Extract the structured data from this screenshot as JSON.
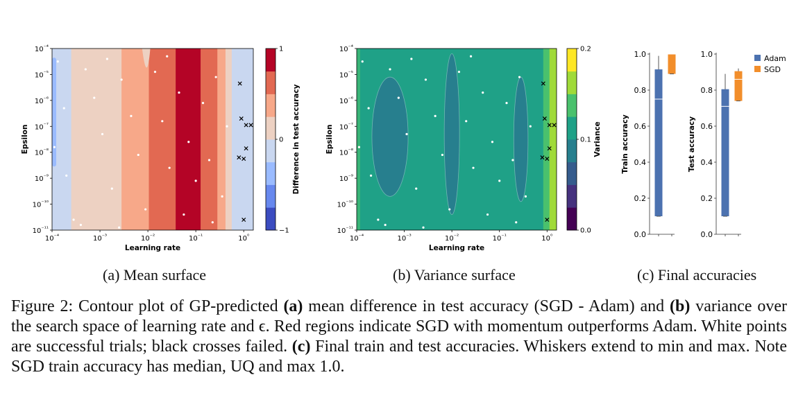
{
  "colors": {
    "coolwarm": [
      "#3b4cc0",
      "#6788ee",
      "#9abbff",
      "#c9d7f0",
      "#edd1c2",
      "#f7a889",
      "#e26952",
      "#b40426"
    ],
    "viridis": [
      "#440154",
      "#46327e",
      "#365c8d",
      "#277f8e",
      "#1fa187",
      "#4ac16d",
      "#a0da39",
      "#fde725"
    ],
    "adam": "#4c72b0",
    "sgd": "#f28e2b"
  },
  "chart_data": [
    {
      "type": "heatmap",
      "name": "mean-surface",
      "xlabel": "Learning rate",
      "ylabel": "Epsilon",
      "x_ticks": [
        {
          "value": -4,
          "label": "10⁻⁴"
        },
        {
          "value": -3,
          "label": "10⁻³"
        },
        {
          "value": -2,
          "label": "10⁻²"
        },
        {
          "value": -1,
          "label": "10⁻¹"
        },
        {
          "value": 0,
          "label": "10⁰"
        }
      ],
      "y_ticks": [
        {
          "value": -4,
          "label": "10⁻⁴"
        },
        {
          "value": -5,
          "label": "10⁻⁵"
        },
        {
          "value": -6,
          "label": "10⁻⁶"
        },
        {
          "value": -7,
          "label": "10⁻⁷"
        },
        {
          "value": -8,
          "label": "10⁻⁸"
        },
        {
          "value": -9,
          "label": "10⁻⁹"
        },
        {
          "value": -10,
          "label": "10⁻¹⁰"
        },
        {
          "value": -11,
          "label": "10⁻¹¹"
        }
      ],
      "xlim_log10": [
        -4,
        0.2
      ],
      "ylim_log10": [
        -11,
        -4
      ],
      "colorbar": {
        "label": "Difference in test accuracy",
        "min": -1,
        "max": 1,
        "ticks": [
          {
            "value": 1,
            "label": "1"
          },
          {
            "value": 0,
            "label": "0"
          },
          {
            "value": -1,
            "label": "−1"
          }
        ]
      },
      "bands_log10_lr": [
        {
          "from": -4,
          "to": -3.6,
          "level": 3
        },
        {
          "from": -3.6,
          "to": -2.55,
          "level": 4
        },
        {
          "from": -2.55,
          "to": -1.98,
          "level": 5
        },
        {
          "from": -1.98,
          "to": -1.42,
          "level": 6
        },
        {
          "from": -1.42,
          "to": -0.9,
          "level": 7
        },
        {
          "from": -0.9,
          "to": -0.55,
          "level": 6
        },
        {
          "from": -0.55,
          "to": -0.38,
          "level": 5
        },
        {
          "from": -0.38,
          "to": -0.25,
          "level": 4
        },
        {
          "from": -0.25,
          "to": 0.2,
          "level": 3
        }
      ],
      "success_points": [
        [
          -3.88,
          -4.5
        ],
        [
          -3.75,
          -6.3
        ],
        [
          -3.7,
          -8.9
        ],
        [
          -3.55,
          -10.6
        ],
        [
          -3.3,
          -4.8
        ],
        [
          -3.12,
          -5.9
        ],
        [
          -2.95,
          -7.3
        ],
        [
          -2.75,
          -9.4
        ],
        [
          -2.55,
          -5.2
        ],
        [
          -2.35,
          -6.6
        ],
        [
          -2.2,
          -8.1
        ],
        [
          -2.05,
          -10.2
        ],
        [
          -1.85,
          -4.9
        ],
        [
          -1.7,
          -6.8
        ],
        [
          -1.55,
          -8.6
        ],
        [
          -1.35,
          -5.7
        ],
        [
          -1.15,
          -7.6
        ],
        [
          -1.0,
          -9.1
        ],
        [
          -0.85,
          -6.1
        ],
        [
          -0.72,
          -8.3
        ],
        [
          -0.58,
          -5.1
        ],
        [
          -0.45,
          -9.7
        ],
        [
          -0.35,
          -7.0
        ],
        [
          -3.4,
          -10.8
        ],
        [
          -2.6,
          -10.9
        ],
        [
          -1.25,
          -10.4
        ],
        [
          -0.65,
          -10.7
        ],
        [
          -3.95,
          -7.8
        ],
        [
          -2.85,
          -4.4
        ],
        [
          -1.6,
          -4.3
        ]
      ],
      "failed_points": [
        [
          -0.08,
          -5.35
        ],
        [
          -0.05,
          -6.7
        ],
        [
          0.05,
          -6.95
        ],
        [
          0.15,
          -6.95
        ],
        [
          -0.1,
          -8.2
        ],
        [
          0.0,
          -8.25
        ],
        [
          0.05,
          -7.85
        ],
        [
          0.0,
          -10.6
        ]
      ]
    },
    {
      "type": "heatmap",
      "name": "variance-surface",
      "xlabel": "Learning rate",
      "ylabel": "Epsilon",
      "x_ticks": [
        {
          "value": -4,
          "label": "10⁻⁴"
        },
        {
          "value": -3,
          "label": "10⁻³"
        },
        {
          "value": -2,
          "label": "10⁻²"
        },
        {
          "value": -1,
          "label": "10⁻¹"
        },
        {
          "value": 0,
          "label": "10⁰"
        }
      ],
      "y_ticks": [
        {
          "value": -4,
          "label": "10⁻⁴"
        },
        {
          "value": -5,
          "label": "10⁻⁵"
        },
        {
          "value": -6,
          "label": "10⁻⁶"
        },
        {
          "value": -7,
          "label": "10⁻⁷"
        },
        {
          "value": -8,
          "label": "10⁻⁸"
        },
        {
          "value": -9,
          "label": "10⁻⁹"
        },
        {
          "value": -10,
          "label": "10⁻¹⁰"
        },
        {
          "value": -11,
          "label": "10⁻¹¹"
        }
      ],
      "xlim_log10": [
        -4,
        0.2
      ],
      "ylim_log10": [
        -11,
        -4
      ],
      "colorbar": {
        "label": "Variance",
        "min": 0,
        "max": 0.2,
        "ticks": [
          {
            "value": 0.2,
            "label": "0.2"
          },
          {
            "value": 0.1,
            "label": "0.1"
          },
          {
            "value": 0,
            "label": "0.0"
          }
        ]
      },
      "background_level": 4,
      "low_regions_log10": [
        {
          "cx": -3.3,
          "cy": -7.4,
          "rx": 0.38,
          "ry": 2.3,
          "level": 3
        },
        {
          "cx": -2.0,
          "cy": -7.3,
          "rx": 0.16,
          "ry": 3.1,
          "level": 3
        },
        {
          "cx": -0.55,
          "cy": -7.5,
          "rx": 0.15,
          "ry": 2.4,
          "level": 3
        }
      ],
      "right_bands_log10_lr": [
        {
          "from": -0.08,
          "to": 0.05,
          "level": 5
        },
        {
          "from": 0.05,
          "to": 0.2,
          "level": 6
        }
      ],
      "success_points": [
        [
          -3.88,
          -4.5
        ],
        [
          -3.75,
          -6.3
        ],
        [
          -3.7,
          -8.9
        ],
        [
          -3.55,
          -10.6
        ],
        [
          -3.3,
          -4.8
        ],
        [
          -3.12,
          -5.9
        ],
        [
          -2.95,
          -7.3
        ],
        [
          -2.75,
          -9.4
        ],
        [
          -2.55,
          -5.2
        ],
        [
          -2.35,
          -6.6
        ],
        [
          -2.2,
          -8.1
        ],
        [
          -2.05,
          -10.2
        ],
        [
          -1.85,
          -4.9
        ],
        [
          -1.7,
          -6.8
        ],
        [
          -1.55,
          -8.6
        ],
        [
          -1.35,
          -5.7
        ],
        [
          -1.15,
          -7.6
        ],
        [
          -1.0,
          -9.1
        ],
        [
          -0.85,
          -6.1
        ],
        [
          -0.72,
          -8.3
        ],
        [
          -0.58,
          -5.1
        ],
        [
          -0.45,
          -9.7
        ],
        [
          -0.35,
          -7.0
        ],
        [
          -3.4,
          -10.8
        ],
        [
          -2.6,
          -10.9
        ],
        [
          -1.25,
          -10.4
        ],
        [
          -0.65,
          -10.7
        ],
        [
          -3.95,
          -7.8
        ],
        [
          -2.85,
          -4.4
        ],
        [
          -1.6,
          -4.3
        ]
      ],
      "failed_points": [
        [
          -0.08,
          -5.35
        ],
        [
          -0.05,
          -6.7
        ],
        [
          0.05,
          -6.95
        ],
        [
          0.15,
          -6.95
        ],
        [
          -0.1,
          -8.2
        ],
        [
          0.0,
          -8.25
        ],
        [
          0.05,
          -7.85
        ],
        [
          0.0,
          -10.6
        ]
      ]
    },
    {
      "type": "box",
      "name": "train-accuracy",
      "ylabel": "Train accuracy",
      "ylim": [
        0,
        1.0
      ],
      "y_ticks": [
        {
          "value": 0,
          "label": "0.0"
        },
        {
          "value": 0.2,
          "label": "0.2"
        },
        {
          "value": 0.4,
          "label": "0.4"
        },
        {
          "value": 0.6,
          "label": "0.6"
        },
        {
          "value": 0.8,
          "label": "0.8"
        },
        {
          "value": 1.0,
          "label": "1.0"
        }
      ],
      "boxes": [
        {
          "series": "Adam",
          "min": 0.1,
          "q1": 0.1,
          "median": 0.75,
          "q3": 0.915,
          "max": 0.99
        },
        {
          "series": "SGD",
          "min": 0.89,
          "q1": 0.89,
          "median": 1.0,
          "q3": 1.0,
          "max": 1.0
        }
      ]
    },
    {
      "type": "box",
      "name": "test-accuracy",
      "ylabel": "Test accuracy",
      "ylim": [
        0,
        1.0
      ],
      "y_ticks": [
        {
          "value": 0,
          "label": "0.0"
        },
        {
          "value": 0.2,
          "label": "0.2"
        },
        {
          "value": 0.4,
          "label": "0.4"
        },
        {
          "value": 0.6,
          "label": "0.6"
        },
        {
          "value": 0.8,
          "label": "0.8"
        },
        {
          "value": 1.0,
          "label": "1.0"
        }
      ],
      "boxes": [
        {
          "series": "Adam",
          "min": 0.1,
          "q1": 0.1,
          "median": 0.71,
          "q3": 0.805,
          "max": 0.89
        },
        {
          "series": "SGD",
          "min": 0.74,
          "q1": 0.74,
          "median": 0.86,
          "q3": 0.905,
          "max": 0.92
        }
      ],
      "legend": {
        "placement": "top-right",
        "entries": [
          "Adam",
          "SGD"
        ]
      }
    }
  ],
  "subcaptions": {
    "a": "(a) Mean surface",
    "b": "(b) Variance surface",
    "c": "(c) Final accuracies"
  },
  "caption": {
    "p1": "Figure 2: Contour plot of GP-predicted ",
    "b1": "(a)",
    "p2": " mean difference in test accuracy (SGD - Adam) and ",
    "b2": "(b)",
    "p3": " variance over the search space of learning rate and ϵ. Red regions indicate SGD with momentum outperforms Adam. White points are successful trials; black crosses failed. ",
    "b3": "(c)",
    "p4": " Final train and test accuracies. Whiskers extend to min and max. Note SGD train accuracy has median, UQ and max 1.0."
  }
}
